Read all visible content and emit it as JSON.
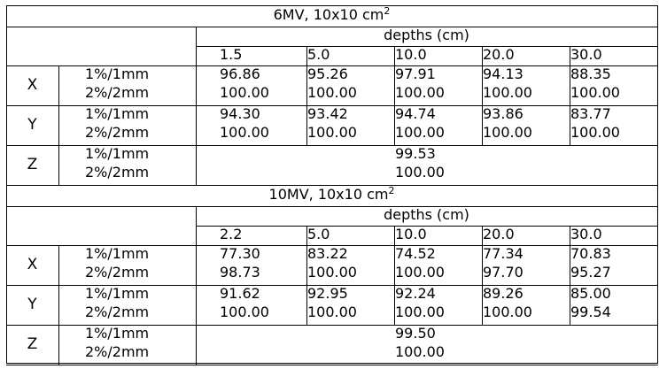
{
  "sections": [
    {
      "title": "6MV, 10x10  cm",
      "title_sup": "2",
      "depths_label": "depths (cm)",
      "depths": [
        "1.5",
        "5.0",
        "10.0",
        "20.0",
        "30.0"
      ],
      "axes": [
        {
          "axis": "X",
          "rows": [
            {
              "criterion": "1%/1mm",
              "values": [
                "96.86",
                "95.26",
                "97.91",
                "94.13",
                "88.35"
              ]
            },
            {
              "criterion": "2%/2mm",
              "values": [
                "100.00",
                "100.00",
                "100.00",
                "100.00",
                "100.00"
              ]
            }
          ]
        },
        {
          "axis": "Y",
          "rows": [
            {
              "criterion": "1%/1mm",
              "values": [
                "94.30",
                "93.42",
                "94.74",
                "93.86",
                "83.77"
              ]
            },
            {
              "criterion": "2%/2mm",
              "values": [
                "100.00",
                "100.00",
                "100.00",
                "100.00",
                "100.00"
              ]
            }
          ]
        },
        {
          "axis": "Z",
          "rows": [
            {
              "criterion": "1%/1mm",
              "single": "99.53"
            },
            {
              "criterion": "2%/2mm",
              "single": "100.00"
            }
          ]
        }
      ]
    },
    {
      "title": "10MV, 10x10  cm",
      "title_sup": "2",
      "depths_label": "depths (cm)",
      "depths": [
        "2.2",
        "5.0",
        "10.0",
        "20.0",
        "30.0"
      ],
      "axes": [
        {
          "axis": "X",
          "rows": [
            {
              "criterion": "1%/1mm",
              "values": [
                "77.30",
                "83.22",
                "74.52",
                "77.34",
                "70.83"
              ]
            },
            {
              "criterion": "2%/2mm",
              "values": [
                "98.73",
                "100.00",
                "100.00",
                "97.70",
                "95.27"
              ]
            }
          ]
        },
        {
          "axis": "Y",
          "rows": [
            {
              "criterion": "1%/1mm",
              "values": [
                "91.62",
                "92.95",
                "92.24",
                "89.26",
                "85.00"
              ]
            },
            {
              "criterion": "2%/2mm",
              "values": [
                "100.00",
                "100.00",
                "100.00",
                "100.00",
                "99.54"
              ]
            }
          ]
        },
        {
          "axis": "Z",
          "rows": [
            {
              "criterion": "1%/1mm",
              "single": "99.50"
            },
            {
              "criterion": "2%/2mm",
              "single": "100.00"
            }
          ]
        }
      ]
    }
  ]
}
